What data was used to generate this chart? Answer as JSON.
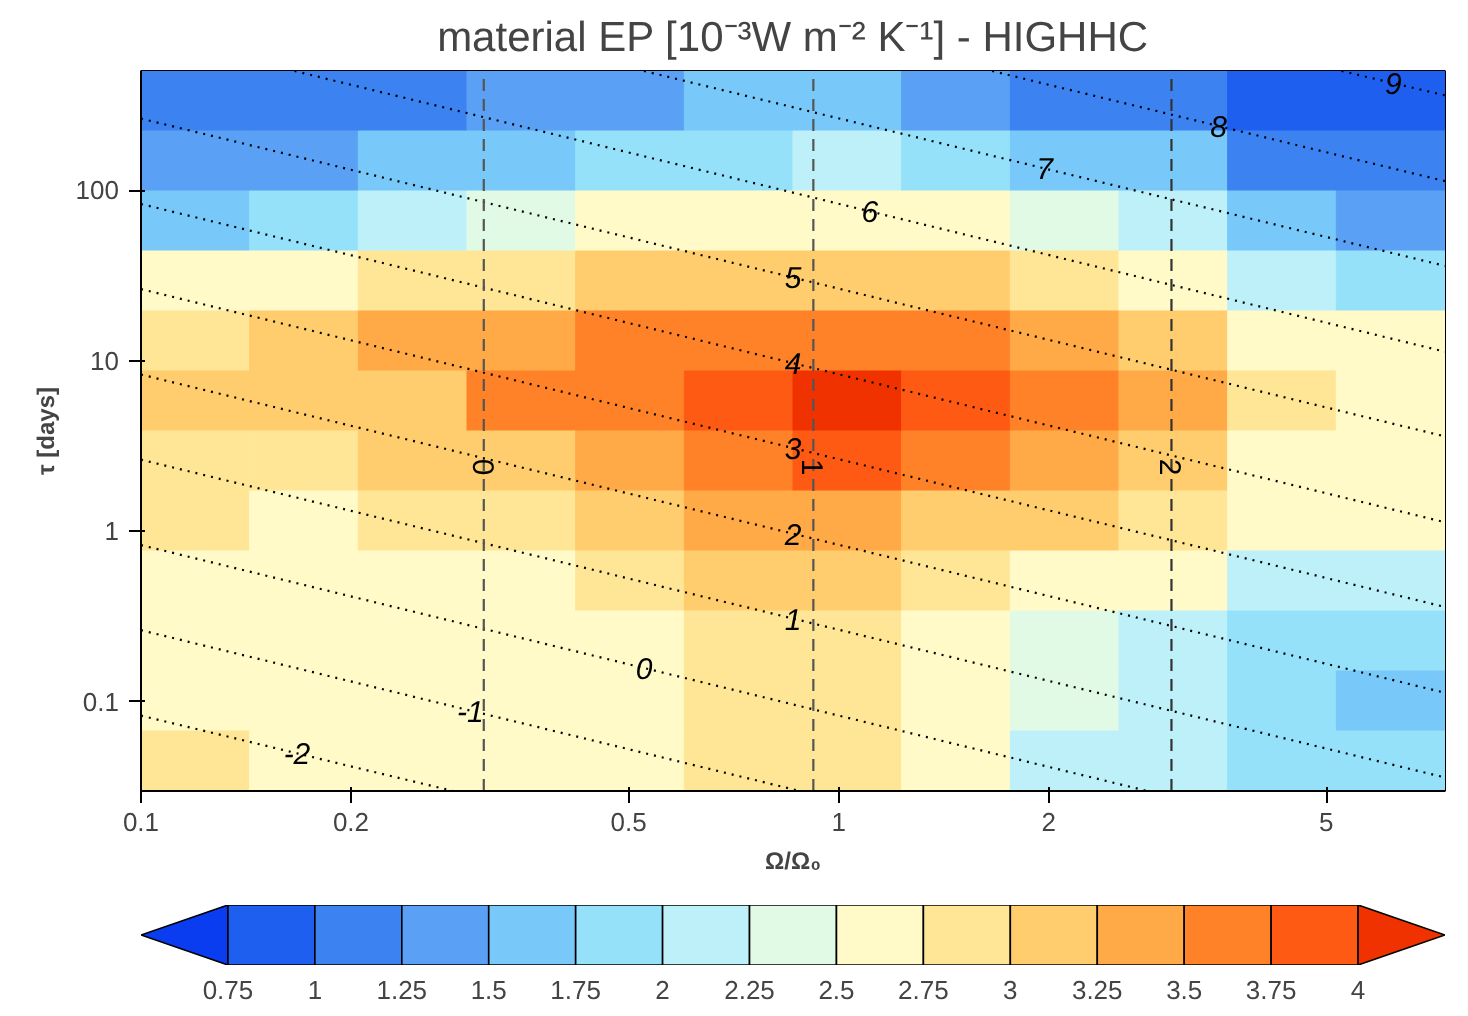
{
  "chart_data": {
    "type": "heatmap",
    "title": "material EP [10⁻³W m⁻² K⁻¹] - HIGHHC",
    "xlabel": "Ω/Ω₀",
    "ylabel": "τ [days]",
    "log": "xy",
    "xlim": [
      0.1,
      7.4
    ],
    "ylim": [
      0.03,
      500
    ],
    "xticks": [
      0.1,
      0.2,
      0.5,
      1,
      2,
      5
    ],
    "yticks": [
      0.1,
      1,
      10,
      100
    ],
    "cells": [
      [
        1.1,
        1.1,
        1.2,
        1.4,
        1.4,
        1.6,
        1.6,
        1.4,
        1.2,
        1.1,
        0.9,
        0.9
      ],
      [
        1.4,
        1.4,
        1.5,
        1.6,
        1.8,
        1.9,
        2.1,
        1.9,
        1.7,
        1.5,
        1.2,
        1.0
      ],
      [
        1.7,
        1.8,
        2.1,
        2.3,
        2.6,
        2.7,
        2.7,
        2.6,
        2.3,
        2.0,
        1.7,
        1.4
      ],
      [
        2.6,
        2.6,
        2.8,
        2.9,
        3.0,
        3.1,
        3.2,
        3.0,
        2.8,
        2.5,
        2.2,
        1.9
      ],
      [
        2.9,
        3.1,
        3.3,
        3.4,
        3.5,
        3.6,
        3.7,
        3.6,
        3.3,
        3.0,
        2.7,
        2.5
      ],
      [
        3.1,
        3.1,
        3.2,
        3.5,
        3.7,
        3.9,
        4.1,
        3.9,
        3.6,
        3.3,
        2.9,
        2.6
      ],
      [
        2.9,
        2.9,
        3.0,
        3.2,
        3.4,
        3.6,
        3.8,
        3.6,
        3.3,
        3.0,
        2.7,
        2.6
      ],
      [
        2.8,
        2.7,
        2.8,
        2.9,
        3.1,
        3.3,
        3.4,
        3.2,
        3.0,
        2.8,
        2.6,
        2.5
      ],
      [
        2.6,
        2.6,
        2.6,
        2.7,
        2.9,
        3.0,
        3.1,
        2.9,
        2.7,
        2.5,
        2.2,
        2.1
      ],
      [
        2.6,
        2.6,
        2.6,
        2.6,
        2.7,
        2.9,
        2.9,
        2.7,
        2.4,
        2.2,
        1.9,
        1.8
      ],
      [
        2.6,
        2.6,
        2.6,
        2.6,
        2.6,
        2.8,
        2.9,
        2.6,
        2.3,
        2.1,
        1.8,
        1.7
      ],
      [
        2.8,
        2.6,
        2.6,
        2.6,
        2.6,
        2.8,
        2.8,
        2.6,
        2.2,
        2.1,
        1.9,
        1.8
      ]
    ],
    "clim": [
      0.5,
      4.25
    ],
    "cticks": [
      0.75,
      1,
      1.25,
      1.5,
      1.75,
      2,
      2.25,
      2.5,
      2.75,
      3,
      3.25,
      3.5,
      3.75,
      4
    ],
    "colors": [
      "#0a3cf0",
      "#1e5ff0",
      "#3c82f0",
      "#5aa0f5",
      "#78c8fa",
      "#96e1fa",
      "#bef0fa",
      "#e1fae6",
      "#fffac8",
      "#ffe696",
      "#ffcd6e",
      "#ffaa46",
      "#ff8228",
      "#ff5a14",
      "#f03200"
    ],
    "series": [
      {
        "name": "-2",
        "type": "line",
        "x": [
          0.1,
          0.28
        ],
        "values": [
          0.083,
          0.03
        ],
        "color": "#000000",
        "line_style": "dotted"
      },
      {
        "name": "-1",
        "type": "line",
        "x": [
          0.1,
          0.88
        ],
        "values": [
          0.263,
          0.03
        ],
        "color": "#000000",
        "line_style": "dotted"
      },
      {
        "name": "0",
        "type": "line",
        "x": [
          0.1,
          2.77
        ],
        "values": [
          0.83,
          0.03
        ],
        "color": "#000000",
        "line_style": "dotted"
      },
      {
        "name": "1",
        "type": "line",
        "x": [
          0.1,
          7.4
        ],
        "values": [
          2.63,
          0.036
        ],
        "color": "#000000",
        "line_style": "dotted"
      },
      {
        "name": "2",
        "type": "line",
        "x": [
          0.1,
          7.4
        ],
        "values": [
          8.3,
          0.113
        ],
        "color": "#000000",
        "line_style": "dotted"
      },
      {
        "name": "3",
        "type": "line",
        "x": [
          0.1,
          7.4
        ],
        "values": [
          26.3,
          0.36
        ],
        "color": "#000000",
        "line_style": "dotted"
      },
      {
        "name": "4",
        "type": "line",
        "x": [
          0.1,
          7.4
        ],
        "values": [
          83,
          1.13
        ],
        "color": "#000000",
        "line_style": "dotted"
      },
      {
        "name": "5",
        "type": "line",
        "x": [
          0.1,
          7.4
        ],
        "values": [
          263,
          3.6
        ],
        "color": "#000000",
        "line_style": "dotted"
      },
      {
        "name": "6",
        "type": "line",
        "x": [
          0.166,
          7.4
        ],
        "values": [
          500,
          11.3
        ],
        "color": "#000000",
        "line_style": "dotted"
      },
      {
        "name": "7",
        "type": "line",
        "x": [
          0.526,
          7.4
        ],
        "values": [
          500,
          36
        ],
        "color": "#000000",
        "line_style": "dotted"
      },
      {
        "name": "8",
        "type": "line",
        "x": [
          1.66,
          7.4
        ],
        "values": [
          500,
          113
        ],
        "color": "#000000",
        "line_style": "dotted"
      },
      {
        "name": "9",
        "type": "line",
        "x": [
          5.26,
          7.4
        ],
        "values": [
          500,
          360
        ],
        "color": "#000000",
        "line_style": "dotted"
      },
      {
        "name": "0",
        "type": "line",
        "x": [
          0.31,
          0.31
        ],
        "values": [
          0.03,
          500
        ],
        "color": "#555555",
        "line_style": "dashed"
      },
      {
        "name": "1",
        "type": "line",
        "x": [
          0.92,
          0.92
        ],
        "values": [
          0.03,
          500
        ],
        "color": "#555555",
        "line_style": "dashed"
      },
      {
        "name": "2",
        "type": "line",
        "x": [
          3.0,
          3.0
        ],
        "values": [
          0.03,
          500
        ],
        "color": "#333333",
        "line_style": "dashed"
      }
    ]
  }
}
